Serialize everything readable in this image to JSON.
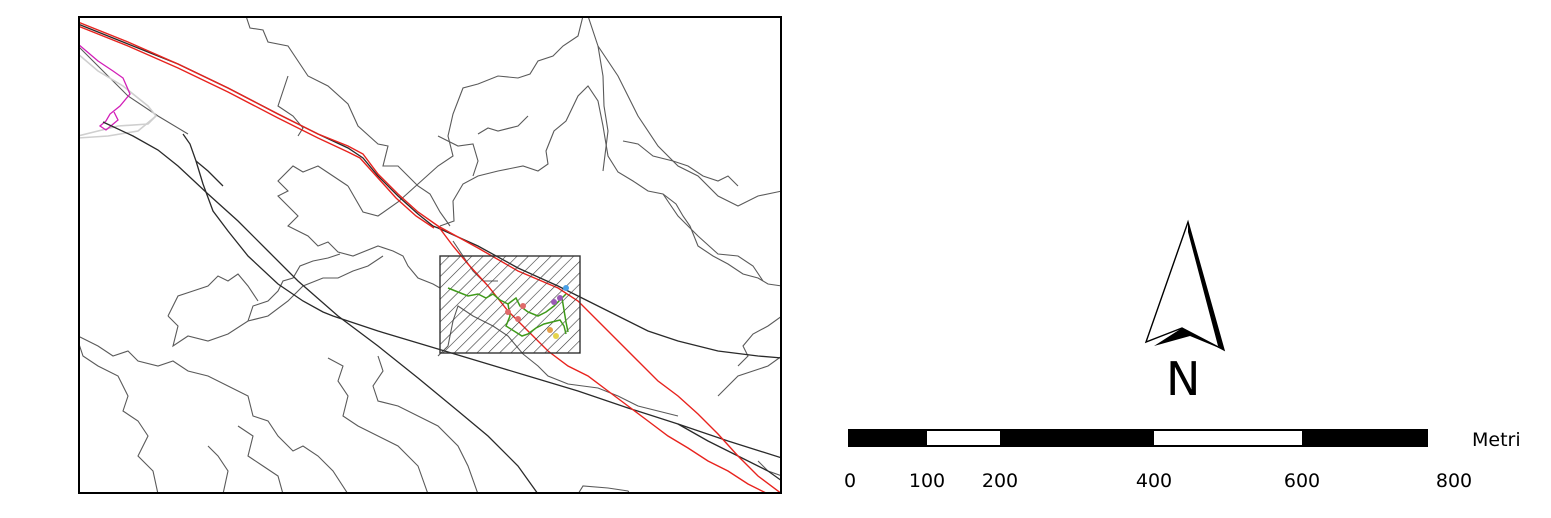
{
  "north_arrow": {
    "label": "N"
  },
  "scale_bar": {
    "unit": "Metri",
    "ticks": [
      "0",
      "100",
      "200",
      "400",
      "600",
      "800"
    ]
  },
  "colors": {
    "map_frame": "#000000",
    "boundaries": "#555555",
    "railway": "#222222",
    "road_red": "#e8231e",
    "road_magenta": "#d21fb8",
    "road_grey": "#cfcfcf",
    "path_green": "#3f9a1a",
    "study_area_hatch": "#333333"
  }
}
